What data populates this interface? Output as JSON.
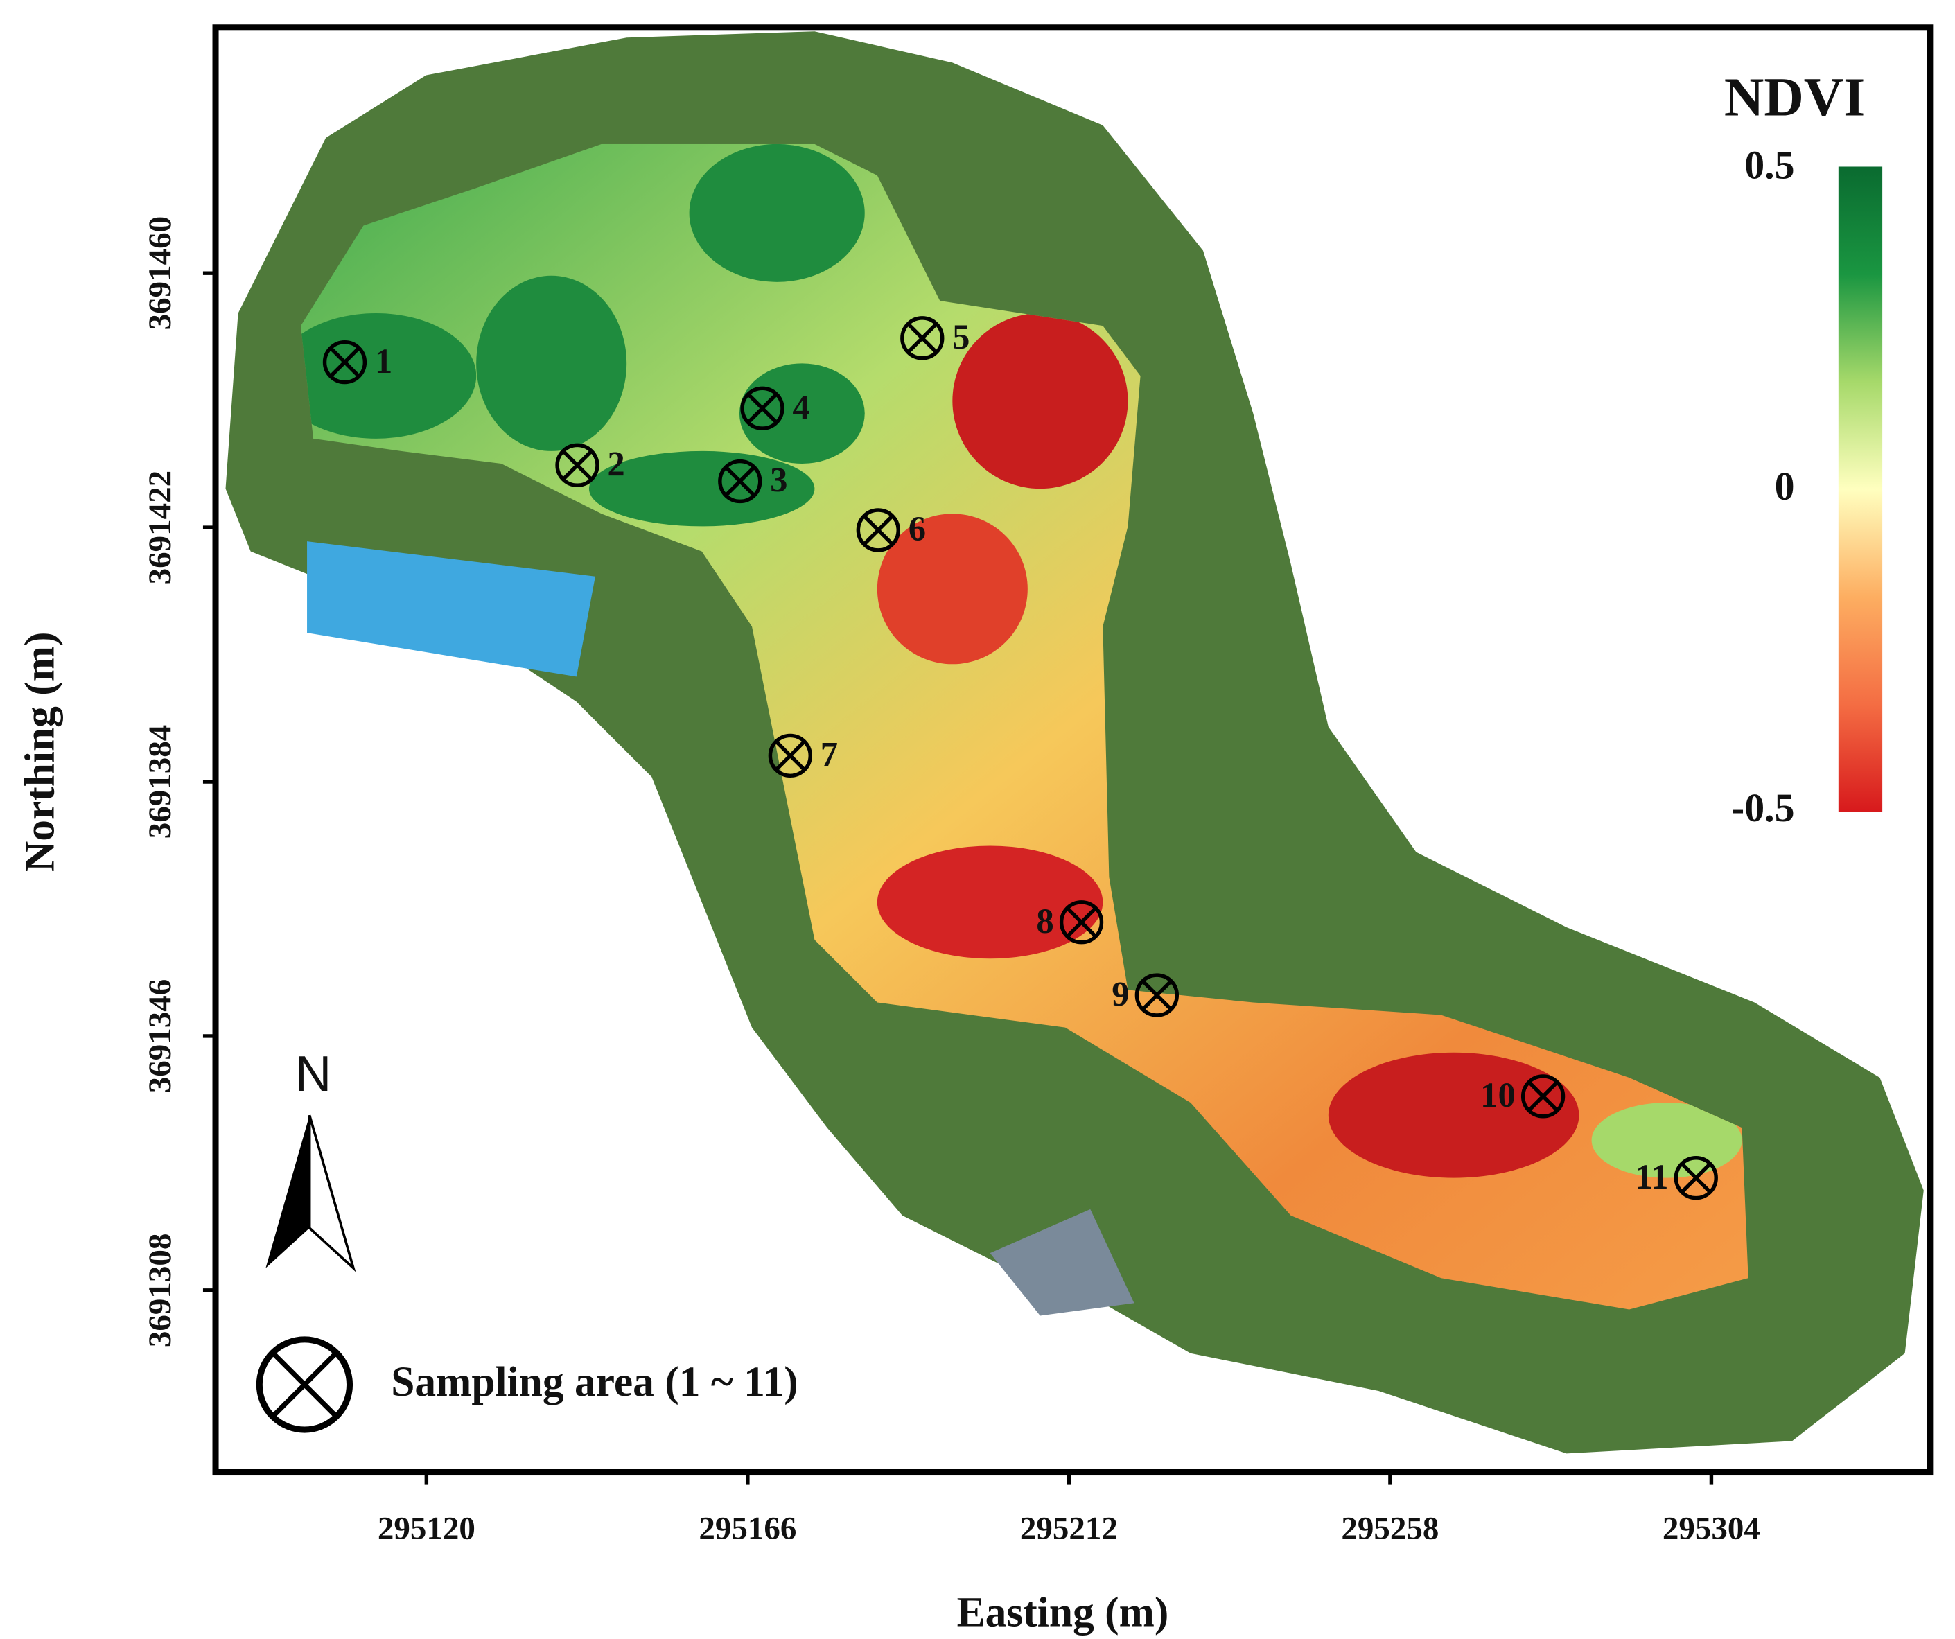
{
  "map": {
    "title": "NDVI",
    "x_label": "Easting (m)",
    "y_label": "Northing (m)",
    "xlim": [
      295089.8,
      295335.3
    ],
    "ylim": [
      3691280.8,
      3691496.7
    ],
    "xticks": [
      295120,
      295166,
      295212,
      295258,
      295304
    ],
    "yticks": [
      3691460,
      3691422,
      3691384,
      3691346,
      3691308
    ],
    "colorbar": {
      "lim": [
        -0.5,
        0.5
      ],
      "ticks": [
        0.5,
        0,
        -0.5
      ],
      "colors": [
        "#d7191c",
        "#f46d43",
        "#fdae61",
        "#ffffbf",
        "#a6d96a",
        "#1a9641",
        "#0a6b30"
      ]
    },
    "north_label": "N",
    "legend_label": "Sampling area (1 ~ 11)",
    "samples": [
      {
        "label": "1",
        "x": 295108.3,
        "y": 3691446.7
      },
      {
        "label": "2",
        "x": 295141.6,
        "y": 3691431.3
      },
      {
        "label": "3",
        "x": 295164.9,
        "y": 3691428.9
      },
      {
        "label": "4",
        "x": 295168.1,
        "y": 3691439.8
      },
      {
        "label": "5",
        "x": 295191.0,
        "y": 3691450.3
      },
      {
        "label": "6",
        "x": 295184.7,
        "y": 3691421.6
      },
      {
        "label": "7",
        "x": 295172.1,
        "y": 3691387.9
      },
      {
        "label": "8",
        "x": 295213.8,
        "y": 3691363.0
      },
      {
        "label": "9",
        "x": 295224.6,
        "y": 3691352.1
      },
      {
        "label": "10",
        "x": 295279.9,
        "y": 3691337.0
      },
      {
        "label": "11",
        "x": 295301.8,
        "y": 3691324.8
      }
    ]
  }
}
